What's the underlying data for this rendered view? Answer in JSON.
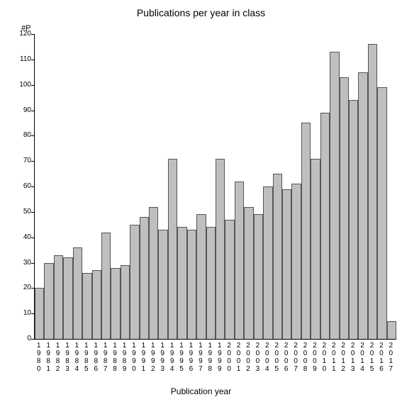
{
  "chart": {
    "type": "bar",
    "title": "Publications per year in class",
    "y_axis_top_label": "#P",
    "x_axis_label": "Publication year",
    "ylim_max": 120,
    "ytick_step": 10,
    "bar_color": "#bfbfbf",
    "bar_border_color": "#555555",
    "background_color": "#ffffff",
    "axis_color": "#000000",
    "title_fontsize": 14,
    "label_fontsize": 12,
    "tick_fontsize": 10,
    "years": [
      "1980",
      "1981",
      "1982",
      "1983",
      "1984",
      "1985",
      "1986",
      "1987",
      "1988",
      "1989",
      "1990",
      "1991",
      "1992",
      "1993",
      "1994",
      "1995",
      "1996",
      "1997",
      "1998",
      "1999",
      "2000",
      "2001",
      "2002",
      "2003",
      "2004",
      "2005",
      "2006",
      "2007",
      "2008",
      "2009",
      "2010",
      "2011",
      "2012",
      "2013",
      "2014",
      "2015",
      "2016",
      "2017"
    ],
    "values": [
      20,
      30,
      33,
      32,
      36,
      26,
      27,
      42,
      28,
      29,
      45,
      48,
      52,
      43,
      71,
      44,
      43,
      49,
      44,
      71,
      47,
      62,
      52,
      49,
      60,
      65,
      59,
      61,
      85,
      71,
      89,
      113,
      103,
      94,
      105,
      116,
      99,
      7
    ]
  }
}
